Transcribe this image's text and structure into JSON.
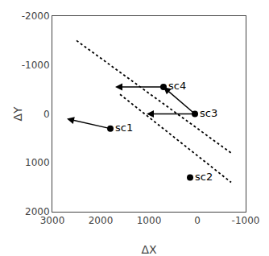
{
  "chart_data": {
    "type": "scatter",
    "xlabel": "ΔX",
    "ylabel": "ΔY",
    "xlim": [
      3000,
      -1000
    ],
    "ylim": [
      2000,
      -2000
    ],
    "xticks": [
      3000,
      2000,
      1000,
      0,
      -1000
    ],
    "yticks": [
      -2000,
      -1000,
      0,
      1000,
      2000
    ],
    "grid": false,
    "color": "black",
    "marker": "circle",
    "x": [
      1800,
      150,
      50,
      700
    ],
    "y": [
      300,
      1300,
      0,
      -550
    ],
    "labels": [
      "sc1",
      "sc2",
      "sc3",
      "sc4"
    ],
    "lines": [
      {
        "x": [
          2500,
          -700
        ],
        "y": [
          -1500,
          800
        ],
        "line_style": "dotted"
      },
      {
        "x": [
          1600,
          -700
        ],
        "y": [
          -400,
          1400
        ],
        "line_style": "dotted"
      }
    ],
    "arrows": [
      {
        "x_from": 700,
        "y_from": -550,
        "x_to": 1700,
        "y_to": -550
      },
      {
        "x_from": 50,
        "y_from": 0,
        "x_to": 1050,
        "y_to": 0
      },
      {
        "x_from": 50,
        "y_from": 0,
        "x_to": 700,
        "y_to": -550
      },
      {
        "x_from": 1800,
        "y_from": 300,
        "x_to": 2700,
        "y_to": 100
      }
    ]
  }
}
